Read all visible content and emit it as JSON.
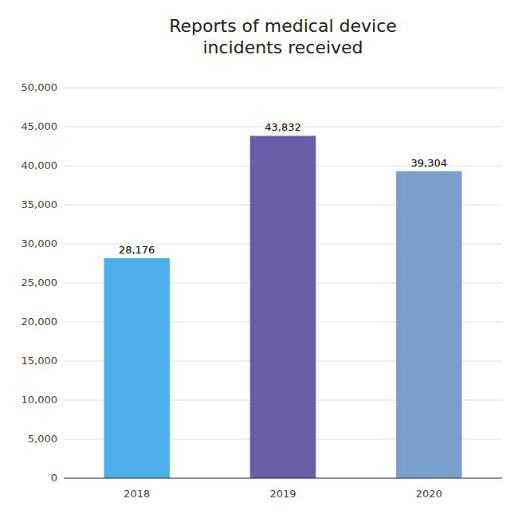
{
  "chart_data": {
    "type": "bar",
    "title": "Reports of medical device\nincidents received",
    "categories": [
      "2018",
      "2019",
      "2020"
    ],
    "values": [
      28176,
      43832,
      39304
    ],
    "value_labels": [
      "28,176",
      "43,832",
      "39,304"
    ],
    "colors": [
      "#4BAEE8",
      "#6B5EA8",
      "#7B9FCC"
    ],
    "ylim": [
      0,
      50000
    ],
    "yticks": [
      0,
      {
        "value": 5000,
        "label": "5,000"
      },
      {
        "value": 10000,
        "label": "10,000"
      },
      {
        "value": 15000,
        "label": "15,000"
      },
      {
        "value": 20000,
        "label": "20,000"
      },
      {
        "value": 25000,
        "label": "25,000"
      },
      {
        "value": 30000,
        "label": "30,000"
      },
      {
        "value": 35000,
        "label": "35,000"
      },
      {
        "value": 40000,
        "label": "40,000"
      },
      {
        "value": 45000,
        "label": "45,000"
      },
      {
        "value": 50000,
        "label": "50,000"
      }
    ],
    "grid": true,
    "data_labels": true
  }
}
